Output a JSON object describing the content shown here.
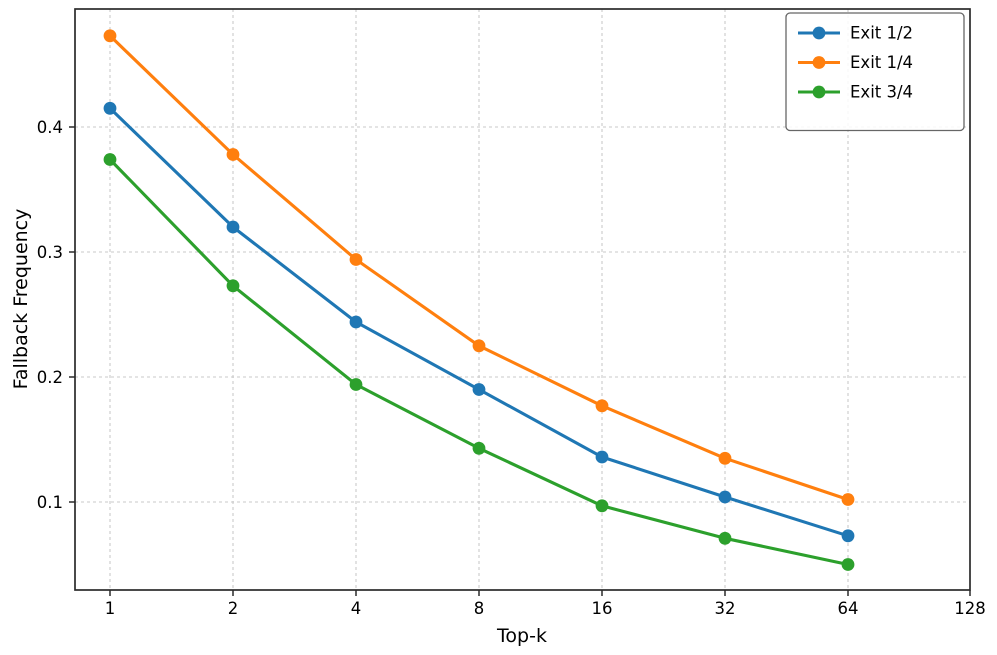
{
  "chart_data": {
    "type": "line",
    "title": "",
    "xlabel": "Top-k",
    "ylabel": "Fallback Frequency",
    "x_scale": "log2",
    "x": [
      1,
      2,
      4,
      8,
      16,
      32,
      64
    ],
    "x_tick_labels": [
      "1",
      "2",
      "4",
      "8",
      "16",
      "32",
      "64",
      "128"
    ],
    "x_tick_values": [
      1,
      2,
      4,
      8,
      16,
      32,
      64,
      128
    ],
    "y_tick_labels": [
      "0.1",
      "0.2",
      "0.3",
      "0.4"
    ],
    "y_tick_values": [
      0.1,
      0.2,
      0.3,
      0.4
    ],
    "xlim_log2": [
      -0.285,
      7.0
    ],
    "ylim": [
      0.0296,
      0.4944
    ],
    "grid": "dashed",
    "legend_position": "upper right",
    "series": [
      {
        "name": "Exit 1/2",
        "color": "#1f77b4",
        "values": [
          0.415,
          0.32,
          0.244,
          0.19,
          0.136,
          0.104,
          0.073
        ]
      },
      {
        "name": "Exit 1/4",
        "color": "#ff7f0e",
        "values": [
          0.473,
          0.378,
          0.294,
          0.225,
          0.177,
          0.135,
          0.102
        ]
      },
      {
        "name": "Exit 3/4",
        "color": "#2ca02c",
        "values": [
          0.374,
          0.273,
          0.194,
          0.143,
          0.097,
          0.071,
          0.05
        ]
      }
    ],
    "colors": {
      "grid": "#c9c9c9",
      "spine": "#2b2b2b",
      "tick": "#2b2b2b",
      "tick_label": "#000000",
      "legend_border": "#666666",
      "legend_background": "rgba(255,255,255,0.85)",
      "background": "#ffffff"
    }
  }
}
